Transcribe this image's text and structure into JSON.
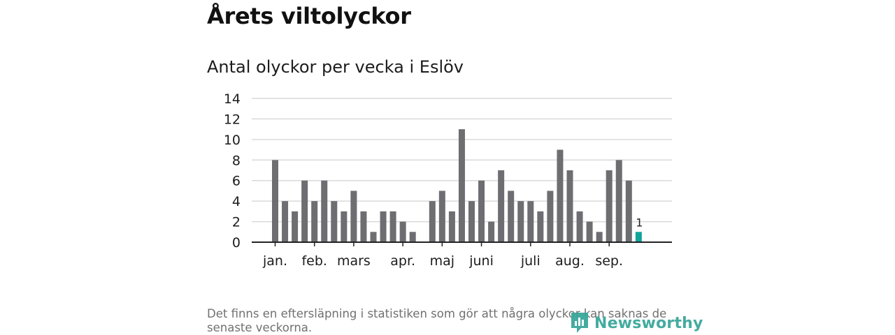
{
  "headline": "Årets viltolyckor",
  "chart_data": {
    "type": "bar",
    "title": "Antal olyckor per vecka i Eslöv",
    "xlabel": "",
    "ylabel": "",
    "ylim": [
      0,
      14
    ],
    "yticks": [
      0,
      2,
      4,
      6,
      8,
      10,
      12,
      14
    ],
    "week_indices": [
      1,
      2,
      3,
      4,
      5,
      6,
      7,
      8,
      9,
      10,
      11,
      12,
      13,
      14,
      15,
      16,
      17,
      18,
      19,
      20,
      21,
      22,
      23,
      24,
      25,
      26,
      27,
      28,
      29,
      30,
      31,
      32,
      33,
      34,
      35,
      36,
      37,
      38
    ],
    "values": [
      8,
      4,
      3,
      6,
      4,
      6,
      4,
      3,
      5,
      3,
      1,
      3,
      3,
      2,
      1,
      0,
      4,
      5,
      3,
      11,
      4,
      6,
      2,
      7,
      5,
      4,
      4,
      3,
      5,
      9,
      7,
      3,
      2,
      1,
      7,
      8,
      6,
      1
    ],
    "highlight_index": 37,
    "highlight_label": "1",
    "month_labels": [
      {
        "label": "jan.",
        "week": 1
      },
      {
        "label": "feb.",
        "week": 5
      },
      {
        "label": "mars",
        "week": 9
      },
      {
        "label": "apr.",
        "week": 14
      },
      {
        "label": "maj",
        "week": 18
      },
      {
        "label": "juni",
        "week": 22
      },
      {
        "label": "juli",
        "week": 27
      },
      {
        "label": "aug.",
        "week": 31
      },
      {
        "label": "sep.",
        "week": 35
      }
    ],
    "colors": {
      "bar": "#6e6d72",
      "highlight": "#11a39a",
      "grid": "#d9d9d9",
      "axis": "#222222"
    }
  },
  "footnote": "Det finns en eftersläpning i statistiken som gör att några olyckor kan saknas de senaste veckorna.",
  "logo": {
    "text": "Newsworthy",
    "icon": "newsworthy-logo-icon",
    "color": "#3aa79a"
  }
}
